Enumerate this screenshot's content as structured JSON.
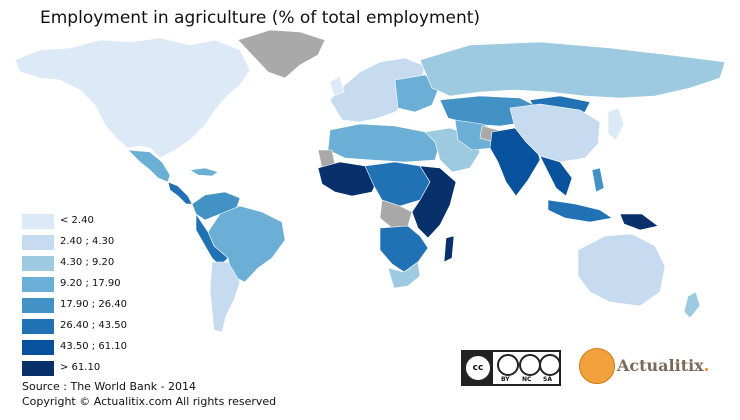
{
  "title": "Employment in agriculture (% of total employment)",
  "legend": [
    {
      "label": "< 2.40",
      "color": "#dce9f6"
    },
    {
      "label": "2.40 ; 4.30",
      "color": "#c6dbef"
    },
    {
      "label": "4.30 ; 9.20",
      "color": "#9ecae1"
    },
    {
      "label": "9.20 ; 17.90",
      "color": "#6baed6"
    },
    {
      "label": "17.90 ; 26.40",
      "color": "#4292c6"
    },
    {
      "label": "26.40 ; 43.50",
      "color": "#2171b5"
    },
    {
      "label": "43.50 ; 61.10",
      "color": "#08519c"
    },
    {
      "label": "> 61.10",
      "color": "#08306b"
    }
  ],
  "no_data_color": "#a9a9a9",
  "source": "Source : The World Bank - 2014",
  "copyright": "Copyright © Actualitix.com All rights reserved",
  "license_badge": {
    "main": "cc",
    "terms": [
      "BY",
      "NC",
      "SA"
    ]
  },
  "brand": {
    "name": "Actualitix",
    "suffix": "."
  }
}
